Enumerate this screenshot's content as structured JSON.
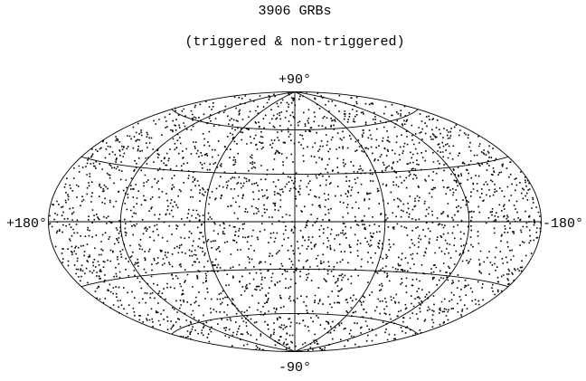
{
  "chart_data": {
    "type": "sky-map",
    "title": "3906 GRBs",
    "subtitle": "(triggered & non-triggered)",
    "labels": {
      "top": "+90°",
      "bottom": "-90°",
      "left": "+180°",
      "right": "-180°"
    }
  }
}
